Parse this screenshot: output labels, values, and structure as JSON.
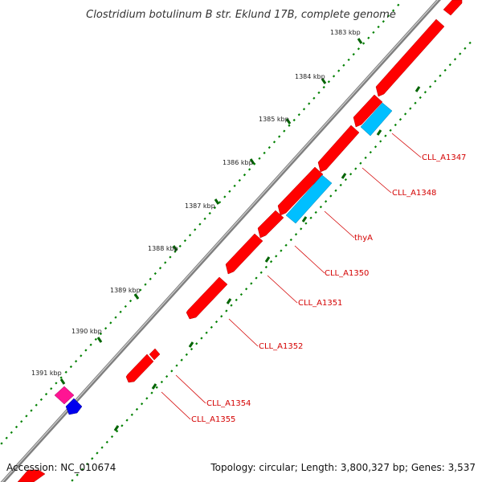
{
  "title": "Clostridium botulinum B str. Eklund 17B, complete genome",
  "accession": "Accession: NC_010674",
  "summary": "Topology: circular; Length: 3,800,327 bp; Genes: 3,537",
  "colors": {
    "backbone": "#7f7f7f",
    "gene_forward": "#ff0000",
    "gene_reverse": "#00bfff",
    "gene_magenta": "#ff1493",
    "gene_blue": "#0000ee",
    "label": "#d40000",
    "tick_major": "#006400",
    "tick_minor": "#008000"
  },
  "ticks": [
    {
      "label": "1383 kbp"
    },
    {
      "label": "1384 kbp"
    },
    {
      "label": "1385 kbp"
    },
    {
      "label": "1386 kbp"
    },
    {
      "label": "1387 kbp"
    },
    {
      "label": "1388 kbp"
    },
    {
      "label": "1389 kbp"
    },
    {
      "label": "1390 kbp"
    },
    {
      "label": "1391 kbp"
    }
  ],
  "genes": [
    {
      "name": "CLL_A1347"
    },
    {
      "name": "CLL_A1348"
    },
    {
      "name": "thyA"
    },
    {
      "name": "CLL_A1350"
    },
    {
      "name": "CLL_A1351"
    },
    {
      "name": "CLL_A1352"
    },
    {
      "name": "CLL_A1354"
    },
    {
      "name": "CLL_A1355"
    }
  ]
}
